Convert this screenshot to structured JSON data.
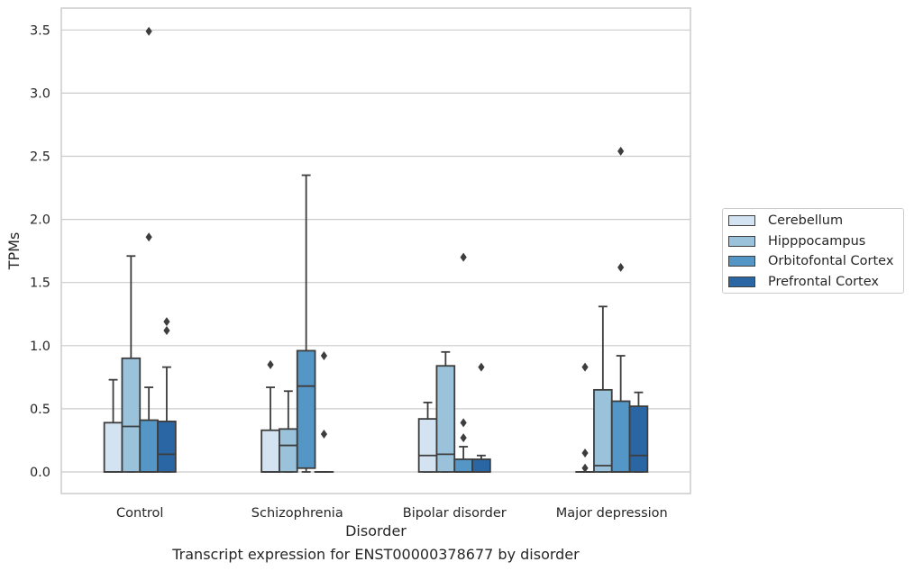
{
  "chart_data": {
    "type": "boxplot",
    "xlabel": "Disorder",
    "ylabel": "TPMs",
    "caption": "Transcript expression for ENST00000378677 by disorder",
    "ylim": [
      -0.17,
      3.67
    ],
    "yticks": [
      "0.0",
      "0.5",
      "1.0",
      "1.5",
      "2.0",
      "2.5",
      "3.0",
      "3.5"
    ],
    "ytick_values": [
      0,
      0.5,
      1.0,
      1.5,
      2.0,
      2.5,
      3.0,
      3.5
    ],
    "grid": "horizontal",
    "legend_position": "right",
    "categories": [
      "Control",
      "Schizophrenia",
      "Bipolar disorder",
      "Major depression"
    ],
    "series": [
      {
        "name": "Cerebellum",
        "color": "#d3e3f1",
        "boxes": [
          {
            "whislo": 0.0,
            "q1": 0.0,
            "med": 0.0,
            "q3": 0.39,
            "whishi": 0.73,
            "fliers": []
          },
          {
            "whislo": 0.0,
            "q1": 0.0,
            "med": 0.0,
            "q3": 0.33,
            "whishi": 0.67,
            "fliers": [
              0.85
            ]
          },
          {
            "whislo": 0.0,
            "q1": 0.0,
            "med": 0.13,
            "q3": 0.42,
            "whishi": 0.55,
            "fliers": []
          },
          {
            "whislo": 0.0,
            "q1": 0.0,
            "med": 0.0,
            "q3": 0.0,
            "whishi": 0.0,
            "fliers": [
              0.83,
              0.15,
              0.03
            ]
          }
        ]
      },
      {
        "name": "Hipppocampus",
        "color": "#9ac3db",
        "boxes": [
          {
            "whislo": 0.0,
            "q1": 0.0,
            "med": 0.36,
            "q3": 0.9,
            "whishi": 1.71,
            "fliers": []
          },
          {
            "whislo": 0.0,
            "q1": 0.0,
            "med": 0.21,
            "q3": 0.34,
            "whishi": 0.64,
            "fliers": []
          },
          {
            "whislo": 0.0,
            "q1": 0.0,
            "med": 0.14,
            "q3": 0.84,
            "whishi": 0.95,
            "fliers": []
          },
          {
            "whislo": 0.0,
            "q1": 0.0,
            "med": 0.05,
            "q3": 0.65,
            "whishi": 1.31,
            "fliers": []
          }
        ]
      },
      {
        "name": "Orbitofontal Cortex",
        "color": "#5497c6",
        "boxes": [
          {
            "whislo": 0.0,
            "q1": 0.0,
            "med": 0.0,
            "q3": 0.41,
            "whishi": 0.67,
            "fliers": [
              3.49,
              1.86
            ]
          },
          {
            "whislo": 0.0,
            "q1": 0.03,
            "med": 0.68,
            "q3": 0.96,
            "whishi": 2.35,
            "fliers": []
          },
          {
            "whislo": 0.0,
            "q1": 0.0,
            "med": 0.0,
            "q3": 0.1,
            "whishi": 0.2,
            "fliers": [
              1.7,
              0.39,
              0.27
            ]
          },
          {
            "whislo": 0.0,
            "q1": 0.0,
            "med": 0.0,
            "q3": 0.56,
            "whishi": 0.92,
            "fliers": [
              2.54,
              1.62
            ]
          }
        ]
      },
      {
        "name": "Prefrontal Cortex",
        "color": "#2a66a3",
        "boxes": [
          {
            "whislo": 0.0,
            "q1": 0.0,
            "med": 0.14,
            "q3": 0.4,
            "whishi": 0.83,
            "fliers": [
              1.19,
              1.12
            ]
          },
          {
            "whislo": 0.0,
            "q1": 0.0,
            "med": 0.0,
            "q3": 0.0,
            "whishi": 0.0,
            "fliers": [
              0.92,
              0.3
            ]
          },
          {
            "whislo": 0.0,
            "q1": 0.0,
            "med": 0.0,
            "q3": 0.1,
            "whishi": 0.13,
            "fliers": [
              0.83
            ]
          },
          {
            "whislo": 0.0,
            "q1": 0.0,
            "med": 0.13,
            "q3": 0.52,
            "whishi": 0.63,
            "fliers": []
          }
        ]
      }
    ]
  }
}
